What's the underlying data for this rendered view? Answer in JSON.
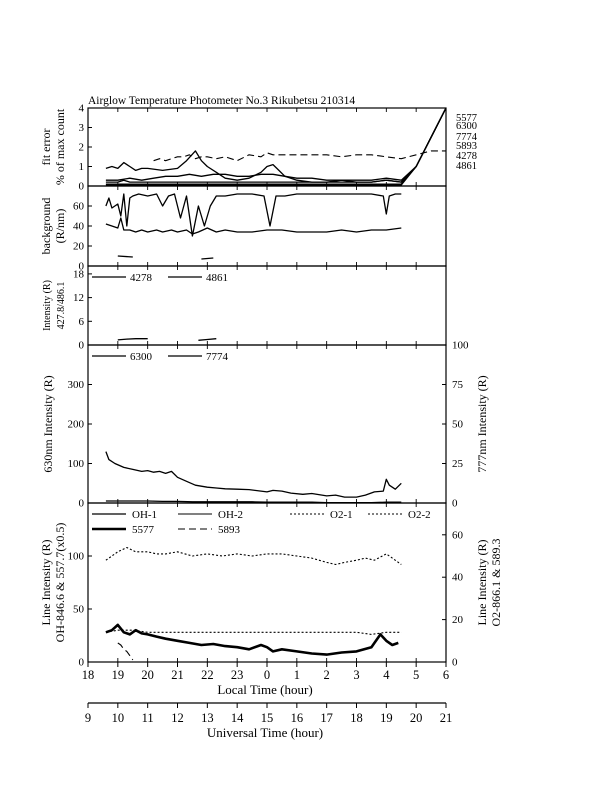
{
  "figure": {
    "title": "Airglow Temperature Photometer No.3   Rikubetsu    210314",
    "local_time_label": "Local Time (hour)",
    "universal_time_label": "Universal Time (hour)",
    "local_ticks": [
      "18",
      "19",
      "20",
      "21",
      "22",
      "23",
      "0",
      "1",
      "2",
      "3",
      "4",
      "5",
      "6"
    ],
    "ut_ticks": [
      "9",
      "10",
      "11",
      "12",
      "13",
      "14",
      "15",
      "16",
      "17",
      "18",
      "19",
      "20",
      "21"
    ],
    "x_range_ut": [
      9,
      21
    ]
  },
  "chart_data": [
    {
      "type": "line",
      "panel": "fit-error",
      "ylabel": [
        "fit error",
        "% of max count"
      ],
      "ylim": [
        0,
        4
      ],
      "yticks": [
        "0",
        "1",
        "2",
        "3",
        "4"
      ],
      "right_labels": [
        "5577",
        "6300",
        "7774",
        "5893",
        "4278",
        "4861"
      ],
      "series": [
        {
          "name": "5893",
          "style": "dash",
          "x": [
            11.2,
            11.4,
            11.6,
            11.8,
            12.0,
            12.2,
            12.4,
            12.6,
            12.8,
            13.0,
            13.3,
            13.6,
            14.0,
            14.4,
            14.8,
            15.0,
            15.2,
            15.5,
            16.0,
            16.5,
            17.0,
            17.5,
            18.0,
            18.5,
            19.0,
            19.5,
            20.0,
            20.5,
            21.0
          ],
          "y": [
            1.3,
            1.4,
            1.3,
            1.4,
            1.5,
            1.5,
            1.6,
            1.4,
            1.5,
            1.5,
            1.4,
            1.5,
            1.3,
            1.6,
            1.5,
            1.7,
            1.6,
            1.6,
            1.6,
            1.6,
            1.6,
            1.5,
            1.6,
            1.6,
            1.5,
            1.4,
            1.6,
            1.8,
            1.8
          ]
        },
        {
          "name": "5577",
          "style": "solid",
          "x": [
            9.6,
            9.8,
            10.0,
            10.2,
            10.4,
            10.6,
            10.8,
            11.0,
            11.5,
            12.0,
            12.3,
            12.6,
            12.8,
            13.0,
            13.3,
            13.6,
            14.0,
            14.4,
            14.8,
            15.0,
            15.2,
            15.4,
            15.6,
            16.0,
            16.5,
            17.0,
            17.5,
            18.0,
            18.5,
            19.0,
            19.5,
            20.0,
            21.0
          ],
          "y": [
            0.9,
            1.0,
            0.9,
            1.2,
            1.0,
            0.8,
            0.9,
            0.9,
            0.8,
            0.9,
            1.3,
            1.8,
            1.3,
            1.0,
            0.7,
            0.4,
            0.3,
            0.4,
            0.7,
            1.0,
            1.1,
            0.8,
            0.5,
            0.3,
            0.2,
            0.2,
            0.3,
            0.2,
            0.2,
            0.3,
            0.2,
            1.0,
            4.0
          ]
        },
        {
          "name": "6300",
          "style": "solid",
          "x": [
            9.6,
            10.0,
            10.4,
            10.8,
            11.2,
            11.6,
            12.0,
            12.4,
            12.8,
            13.2,
            13.6,
            14.0,
            14.4,
            14.8,
            15.2,
            15.6,
            16.0,
            16.5,
            17.0,
            17.5,
            18.0,
            18.5,
            19.0,
            19.5,
            20.0,
            21.0
          ],
          "y": [
            0.3,
            0.3,
            0.4,
            0.3,
            0.4,
            0.5,
            0.5,
            0.6,
            0.5,
            0.6,
            0.6,
            0.5,
            0.5,
            0.6,
            0.6,
            0.5,
            0.4,
            0.4,
            0.3,
            0.3,
            0.3,
            0.3,
            0.4,
            0.3,
            1.0,
            4.0
          ]
        },
        {
          "name": "7774",
          "style": "solid",
          "x": [
            9.6,
            10.0,
            10.2,
            10.4,
            10.6,
            10.8,
            11.0,
            11.5,
            12.0,
            12.5,
            13.0,
            13.5,
            14.0,
            14.5,
            15.0,
            15.5,
            16.0,
            16.5,
            17.0,
            17.5,
            18.0,
            18.5,
            19.0,
            19.5,
            20.0,
            21.0
          ],
          "y": [
            0.2,
            0.2,
            0.3,
            0.2,
            0.2,
            0.2,
            0.2,
            0.2,
            0.2,
            0.2,
            0.2,
            0.2,
            0.2,
            0.2,
            0.2,
            0.2,
            0.2,
            0.2,
            0.2,
            0.2,
            0.2,
            0.2,
            0.3,
            0.2,
            1.0,
            4.0
          ]
        },
        {
          "name": "4278",
          "style": "solid",
          "x": [
            9.6,
            10.0,
            10.5,
            11.0,
            11.5,
            12.0,
            12.5,
            13.0,
            13.5,
            14.0,
            14.5,
            15.0,
            15.5,
            16.0,
            16.5,
            17.0,
            17.5,
            18.0,
            18.5,
            19.0,
            19.5,
            20.0,
            21.0
          ],
          "y": [
            0.1,
            0.1,
            0.1,
            0.1,
            0.1,
            0.1,
            0.1,
            0.1,
            0.1,
            0.1,
            0.1,
            0.1,
            0.1,
            0.1,
            0.1,
            0.1,
            0.1,
            0.1,
            0.1,
            0.1,
            0.1,
            1.0,
            4.0
          ]
        },
        {
          "name": "4861",
          "style": "solid",
          "x": [
            9.6,
            10.0,
            10.5,
            11.0,
            11.5,
            12.0,
            12.5,
            13.0,
            13.5,
            14.0,
            14.5,
            15.0,
            15.5,
            16.0,
            16.5,
            17.0,
            17.5,
            18.0,
            18.5,
            19.0,
            19.5,
            20.0,
            21.0
          ],
          "y": [
            0.05,
            0.05,
            0.05,
            0.05,
            0.05,
            0.05,
            0.05,
            0.05,
            0.05,
            0.05,
            0.05,
            0.05,
            0.05,
            0.05,
            0.05,
            0.05,
            0.05,
            0.05,
            0.05,
            0.05,
            0.05,
            1.0,
            4.0
          ]
        }
      ]
    },
    {
      "type": "line",
      "panel": "background",
      "ylabel": [
        "background",
        "(R/nm)"
      ],
      "ylim": [
        0,
        80
      ],
      "yticks": [
        "0",
        "20",
        "40",
        "60"
      ],
      "series": [
        {
          "name": "bg-a",
          "style": "solid",
          "x": [
            9.6,
            9.7,
            9.8,
            10.0,
            10.1,
            10.2,
            10.3,
            10.4,
            10.5,
            10.7,
            11.0,
            11.3,
            11.5,
            11.7,
            11.9,
            12.1,
            12.3,
            12.5,
            12.7,
            12.9,
            13.1,
            13.3,
            13.6,
            14.0,
            14.5,
            14.9,
            15.1,
            15.3,
            15.6,
            16.0,
            16.5,
            17.0,
            17.5,
            18.0,
            18.5,
            18.9,
            19.0,
            19.1,
            19.3,
            19.5
          ],
          "y": [
            60,
            68,
            58,
            62,
            50,
            72,
            40,
            68,
            70,
            72,
            70,
            72,
            60,
            70,
            72,
            48,
            70,
            30,
            60,
            40,
            60,
            70,
            70,
            72,
            72,
            70,
            40,
            70,
            70,
            72,
            72,
            72,
            72,
            72,
            72,
            70,
            52,
            70,
            72,
            72
          ]
        },
        {
          "name": "bg-b",
          "style": "solid",
          "x": [
            9.6,
            9.8,
            10.0,
            10.1,
            10.2,
            10.4,
            10.6,
            10.8,
            11.0,
            11.3,
            11.5,
            11.8,
            12.0,
            12.3,
            12.5,
            12.7,
            13.0,
            13.3,
            13.6,
            14.0,
            14.5,
            15.0,
            15.5,
            16.0,
            16.5,
            17.0,
            17.5,
            18.0,
            18.5,
            19.0,
            19.5
          ],
          "y": [
            42,
            40,
            38,
            48,
            36,
            36,
            34,
            36,
            34,
            36,
            34,
            36,
            34,
            36,
            32,
            34,
            38,
            34,
            36,
            34,
            34,
            36,
            36,
            34,
            34,
            34,
            36,
            34,
            36,
            36,
            38
          ]
        },
        {
          "name": "bg-c",
          "style": "solid",
          "x": [
            10.0,
            10.5
          ],
          "y": [
            10,
            9
          ]
        },
        {
          "name": "bg-d",
          "style": "solid",
          "x": [
            12.8,
            13.2
          ],
          "y": [
            7,
            8
          ]
        }
      ]
    },
    {
      "type": "line",
      "panel": "blue-lines",
      "ylabel": [
        "Intensity (R)",
        "427.8/486.1"
      ],
      "ylim": [
        0,
        20
      ],
      "yticks": [
        "0",
        "6",
        "12",
        "18"
      ],
      "series": [
        {
          "name": "4278",
          "style": "solid",
          "x": [
            10.0,
            10.3,
            10.6,
            11.0
          ],
          "y": [
            1.3,
            1.5,
            1.6,
            1.6
          ]
        },
        {
          "name": "4861",
          "style": "solid",
          "x": [
            12.7,
            13.0,
            13.3
          ],
          "y": [
            1.2,
            1.4,
            1.6
          ]
        }
      ]
    },
    {
      "type": "line",
      "panel": "oxygen-lines",
      "ylabel": "630nm Intensity (R)",
      "ylabel_right": "777nm Intensity (R)",
      "ylim": [
        0,
        400
      ],
      "ylim_right": [
        0,
        100
      ],
      "yticks": [
        "0",
        "100",
        "200",
        "300"
      ],
      "yticks_right": [
        "0",
        "25",
        "50",
        "75",
        "100"
      ],
      "series": [
        {
          "name": "6300",
          "style": "solid",
          "x": [
            9.6,
            9.7,
            9.9,
            10.2,
            10.5,
            10.8,
            11.0,
            11.2,
            11.4,
            11.6,
            11.8,
            12.0,
            12.3,
            12.6,
            13.0,
            13.3,
            13.6,
            14.0,
            14.4,
            14.8,
            15.0,
            15.2,
            15.5,
            15.8,
            16.2,
            16.5,
            17.0,
            17.3,
            17.6,
            18.0,
            18.3,
            18.6,
            18.9,
            19.0,
            19.1,
            19.3,
            19.5
          ],
          "y": [
            130,
            110,
            100,
            90,
            85,
            80,
            82,
            78,
            80,
            75,
            80,
            65,
            55,
            45,
            40,
            38,
            36,
            35,
            34,
            30,
            28,
            32,
            30,
            25,
            22,
            24,
            18,
            20,
            15,
            15,
            20,
            28,
            30,
            60,
            45,
            35,
            50
          ]
        },
        {
          "name": "7774",
          "style": "solid",
          "x": [
            9.6,
            10.0,
            10.5,
            11.0,
            11.5,
            12.0,
            12.5,
            13.0,
            13.5,
            14.0,
            14.5,
            15.0,
            15.5,
            16.0,
            16.5,
            17.0,
            17.5,
            18.0,
            18.5,
            19.0,
            19.5
          ],
          "y": [
            5,
            5,
            5,
            5,
            4,
            4,
            3,
            3,
            3,
            3,
            3,
            2,
            2,
            2,
            2,
            1,
            1,
            1,
            1,
            2,
            2
          ]
        }
      ]
    },
    {
      "type": "line",
      "panel": "airglow-lines",
      "ylabel": [
        "Line Intensity (R)",
        "OH-846.6 & 557.7(x0.5)"
      ],
      "ylabel_right": [
        "Line Intensity (R)",
        "O2-866.1 & 589.3"
      ],
      "ylim": [
        0,
        150
      ],
      "ylim_right": [
        0,
        75
      ],
      "yticks": [
        "0",
        "50",
        "100"
      ],
      "yticks_right": [
        "0",
        "20",
        "40",
        "60"
      ],
      "legend": [
        "OH-1",
        "OH-2",
        "O2-1",
        "O2-2",
        "5577",
        "5893"
      ],
      "series": [
        {
          "name": "O2-1",
          "axis": "right",
          "style": "dot",
          "x": [
            9.6,
            9.8,
            10.0,
            10.3,
            10.6,
            11.0,
            11.3,
            11.6,
            12.0,
            12.5,
            13.0,
            13.5,
            14.0,
            14.5,
            15.0,
            15.5,
            16.0,
            16.5,
            17.0,
            17.3,
            17.6,
            18.0,
            18.3,
            18.6,
            19.0,
            19.2,
            19.5
          ],
          "y": [
            48,
            50,
            52,
            54,
            52,
            52,
            51,
            51,
            52,
            50,
            51,
            50,
            51,
            50,
            51,
            51,
            50,
            49,
            47,
            46,
            47,
            48,
            49,
            48,
            51,
            49,
            46
          ]
        },
        {
          "name": "O2-2",
          "axis": "right",
          "style": "dot",
          "x": [
            9.6,
            10.0,
            10.5,
            11.0,
            11.5,
            12.0,
            12.5,
            13.0,
            13.5,
            14.0,
            14.5,
            15.0,
            15.5,
            16.0,
            16.5,
            17.0,
            17.5,
            18.0,
            18.5,
            19.0,
            19.5
          ],
          "y": [
            14,
            15,
            15,
            14,
            14,
            14,
            14,
            14,
            14,
            14,
            14,
            14,
            14,
            14,
            14,
            14,
            14,
            14,
            13,
            14,
            14
          ]
        },
        {
          "name": "5577",
          "axis": "left",
          "style": "thick",
          "x": [
            9.6,
            9.8,
            10.0,
            10.2,
            10.4,
            10.6,
            10.8,
            11.0,
            11.3,
            11.6,
            12.0,
            12.4,
            12.8,
            13.2,
            13.6,
            14.0,
            14.4,
            14.8,
            15.0,
            15.2,
            15.5,
            16.0,
            16.5,
            17.0,
            17.5,
            18.0,
            18.5,
            18.8,
            19.0,
            19.2,
            19.4
          ],
          "y": [
            28,
            30,
            35,
            28,
            26,
            30,
            27,
            26,
            24,
            22,
            20,
            18,
            16,
            17,
            15,
            14,
            12,
            16,
            14,
            10,
            12,
            10,
            8,
            7,
            9,
            10,
            14,
            26,
            20,
            16,
            18
          ]
        },
        {
          "name": "5893",
          "axis": "right",
          "style": "dash",
          "x": [
            10.0,
            10.1,
            10.2,
            10.3,
            10.4,
            10.5
          ],
          "y": [
            9,
            8,
            6,
            5,
            3,
            1
          ]
        }
      ]
    }
  ]
}
